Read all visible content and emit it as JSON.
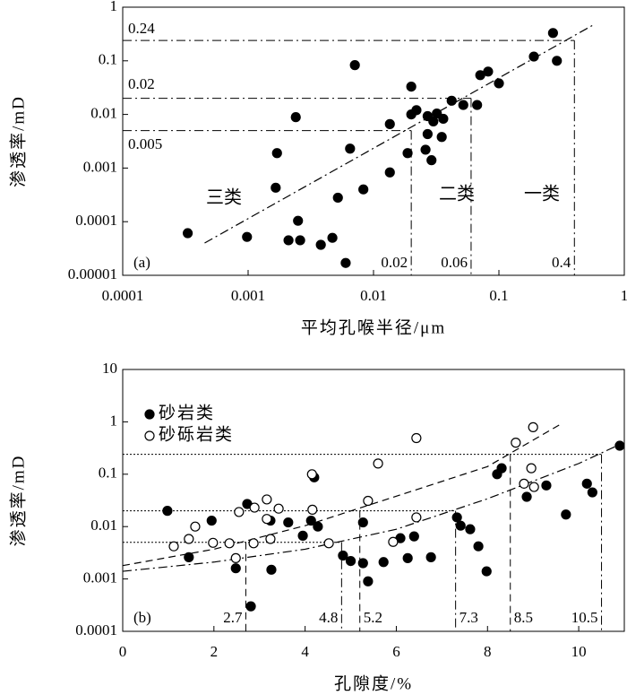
{
  "chart_data": [
    {
      "type": "scatter",
      "panel_label": "(a)",
      "x_label": "平均孔喉半径/μm",
      "y_label": "渗透率/mD",
      "xscale": "log",
      "yscale": "log",
      "xlim": [
        0.0001,
        1
      ],
      "ylim": [
        1e-05,
        1
      ],
      "xticks": [
        0.0001,
        0.001,
        0.01,
        0.1,
        1
      ],
      "yticks": [
        1e-05,
        0.0001,
        0.001,
        0.01,
        0.1,
        1
      ],
      "color": "#000000",
      "marker": "filled",
      "x": [
        0.00033,
        0.00098,
        0.00166,
        0.0017,
        0.0021,
        0.0025,
        0.0024,
        0.0026,
        0.0038,
        0.0047,
        0.0052,
        0.006,
        0.0065,
        0.0071,
        0.0083,
        0.0135,
        0.0135,
        0.0187,
        0.02,
        0.02,
        0.022,
        0.026,
        0.027,
        0.027,
        0.029,
        0.03,
        0.032,
        0.035,
        0.036,
        0.042,
        0.052,
        0.067,
        0.071,
        0.082,
        0.1,
        0.19,
        0.27,
        0.29
      ],
      "values": [
        6.1e-05,
        5.2e-05,
        0.00043,
        0.0019,
        4.5e-05,
        0.000104,
        0.0089,
        4.5e-05,
        3.7e-05,
        5e-05,
        0.00028,
        1.7e-05,
        0.0023,
        0.083,
        0.0004,
        0.00083,
        0.0066,
        0.0019,
        0.033,
        0.01,
        0.012,
        0.0022,
        0.0043,
        0.0093,
        0.0014,
        0.0074,
        0.0104,
        0.0038,
        0.0083,
        0.018,
        0.015,
        0.015,
        0.054,
        0.063,
        0.038,
        0.12,
        0.33,
        0.1
      ],
      "trend_lines": [
        {
          "style": "dashdot",
          "x": [
            0.00045,
            0.56
          ],
          "values": [
            4e-05,
            0.46
          ]
        }
      ],
      "ref_lines": [
        {
          "y": 0.24,
          "x": [
            0.4
          ]
        },
        {
          "y": 0.02,
          "x": [
            0.06
          ]
        },
        {
          "y": 0.005,
          "x": [
            0.02
          ]
        }
      ],
      "label_ref_y": true,
      "ref_h_style": "dashdot",
      "ref_v_styles": [
        "dashdot"
      ],
      "region_labels": [
        "三类",
        "二类",
        "一类"
      ]
    },
    {
      "type": "scatter",
      "panel_label": "(b)",
      "x_label": "孔隙度/%",
      "y_label": "渗透率/mD",
      "xscale": "linear",
      "yscale": "log",
      "xlim": [
        0,
        11
      ],
      "ylim": [
        0.0001,
        10
      ],
      "xticks": [
        0,
        2,
        4,
        6,
        8,
        10
      ],
      "yticks": [
        0.0001,
        0.001,
        0.01,
        0.1,
        1,
        10
      ],
      "legend": "upper left",
      "series": [
        {
          "name": "砂岩类",
          "color": "#000000",
          "marker": "filled",
          "x": [
            0.98,
            1.45,
            1.95,
            2.48,
            2.73,
            2.81,
            3.24,
            3.26,
            3.63,
            3.95,
            4.13,
            4.2,
            4.28,
            4.83,
            5.0,
            5.27,
            5.27,
            5.38,
            5.72,
            6.09,
            6.25,
            6.39,
            6.76,
            7.33,
            7.41,
            7.62,
            7.8,
            7.98,
            8.21,
            8.31,
            8.86,
            9.29,
            9.72,
            10.18,
            10.3,
            10.9
          ],
          "values": [
            0.02,
            0.0026,
            0.013,
            0.0016,
            0.027,
            0.0003,
            0.013,
            0.0015,
            0.012,
            0.0067,
            0.013,
            0.087,
            0.01,
            0.0028,
            0.0022,
            0.012,
            0.002,
            0.0009,
            0.0021,
            0.006,
            0.0025,
            0.0065,
            0.0026,
            0.015,
            0.0104,
            0.0089,
            0.0042,
            0.0014,
            0.1,
            0.13,
            0.037,
            0.061,
            0.017,
            0.066,
            0.045,
            0.35
          ]
        },
        {
          "name": "砂砾岩类",
          "color": "#000000",
          "marker": "open",
          "x": [
            1.12,
            1.45,
            1.59,
            1.98,
            2.34,
            2.48,
            2.55,
            2.87,
            2.89,
            3.16,
            3.16,
            3.24,
            3.42,
            4.15,
            4.16,
            4.52,
            5.38,
            5.6,
            5.93,
            6.44,
            6.44,
            8.62,
            8.8,
            8.96,
            9.0,
            9.02
          ],
          "values": [
            0.0042,
            0.0058,
            0.01,
            0.0049,
            0.0048,
            0.0025,
            0.019,
            0.0048,
            0.023,
            0.033,
            0.014,
            0.0058,
            0.022,
            0.1,
            0.021,
            0.0048,
            0.031,
            0.16,
            0.0051,
            0.49,
            0.015,
            0.4,
            0.066,
            0.13,
            0.79,
            0.057
          ]
        }
      ],
      "trend_lines": [
        {
          "style": "dashed",
          "x": [
            0,
            2,
            4,
            6,
            8,
            9.6
          ],
          "values": [
            0.0018,
            0.0037,
            0.0104,
            0.038,
            0.14,
            0.9
          ]
        },
        {
          "style": "dashdot",
          "x": [
            0,
            2,
            4,
            6,
            8,
            10,
            10.9
          ],
          "values": [
            0.0014,
            0.0021,
            0.0037,
            0.0089,
            0.034,
            0.16,
            0.37
          ]
        }
      ],
      "ref_lines": [
        {
          "y": 0.24,
          "x": [
            8.5,
            10.5
          ]
        },
        {
          "y": 0.02,
          "x": [
            5.2,
            7.3
          ]
        },
        {
          "y": 0.005,
          "x": [
            2.7,
            4.8
          ]
        }
      ],
      "label_ref_y": false,
      "ref_h_style": "dotted",
      "ref_v_styles": [
        "dashed",
        "dashdot"
      ]
    }
  ]
}
